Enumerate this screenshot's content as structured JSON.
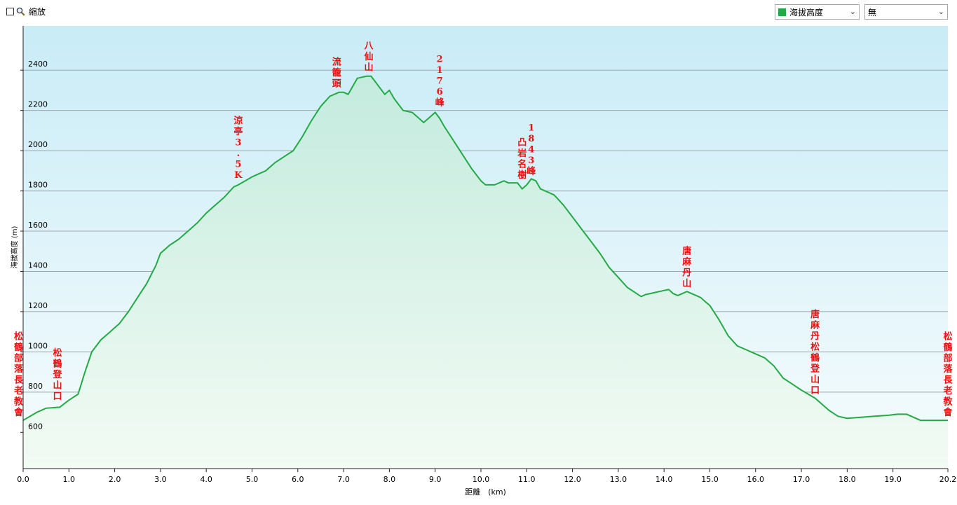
{
  "toolbar": {
    "zoom_label": "縮放",
    "series_select": "海拔高度",
    "series_color": "#22aa44",
    "second_select": "無"
  },
  "chart_data": {
    "type": "area",
    "xlabel": "距離　(km)",
    "ylabel": "海拔高度 (m)",
    "xlim": [
      0,
      20.2
    ],
    "ylim": [
      420,
      2620
    ],
    "grid": true,
    "line_color": "#22aa44",
    "x_ticks": [
      "0.0",
      "1.0",
      "2.0",
      "3.0",
      "4.0",
      "5.0",
      "6.0",
      "7.0",
      "8.0",
      "9.0",
      "10.0",
      "11.0",
      "12.0",
      "13.0",
      "14.0",
      "15.0",
      "16.0",
      "17.0",
      "18.0",
      "19.0",
      "20.2"
    ],
    "x_tick_values": [
      0,
      1,
      2,
      3,
      4,
      5,
      6,
      7,
      8,
      9,
      10,
      11,
      12,
      13,
      14,
      15,
      16,
      17,
      18,
      19,
      20.2
    ],
    "y_ticks": [
      600,
      800,
      1000,
      1200,
      1400,
      1600,
      1800,
      2000,
      2200,
      2400
    ],
    "series": [
      {
        "x": [
          0,
          0.3,
          0.5,
          0.8,
          1.0,
          1.2,
          1.35,
          1.5,
          1.7,
          1.9,
          2.0,
          2.1,
          2.3,
          2.5,
          2.7,
          2.9,
          3.0,
          3.2,
          3.4,
          3.6,
          3.8,
          4.0,
          4.2,
          4.4,
          4.6,
          4.7,
          4.85,
          5.0,
          5.1,
          5.3,
          5.5,
          5.7,
          5.9,
          6.1,
          6.3,
          6.5,
          6.7,
          6.9,
          7.0,
          7.1,
          7.3,
          7.5,
          7.6,
          7.7,
          7.9,
          8.0,
          8.1,
          8.3,
          8.5,
          8.6,
          8.75,
          8.85,
          9.0,
          9.1,
          9.2,
          9.4,
          9.6,
          9.8,
          10.0,
          10.1,
          10.3,
          10.5,
          10.6,
          10.8,
          10.9,
          11.0,
          11.1,
          11.2,
          11.3,
          11.5,
          11.6,
          11.8,
          12.0,
          12.2,
          12.4,
          12.6,
          12.8,
          13.0,
          13.2,
          13.4,
          13.5,
          13.6,
          13.7,
          13.8,
          13.9,
          14.1,
          14.2,
          14.3,
          14.4,
          14.5,
          14.6,
          14.7,
          14.8,
          14.9,
          15.0,
          15.2,
          15.4,
          15.6,
          15.8,
          16.0,
          16.2,
          16.4,
          16.6,
          16.8,
          17.0,
          17.3,
          17.6,
          17.8,
          18.0,
          18.3,
          18.6,
          18.9,
          19.1,
          19.3,
          19.4,
          19.5,
          19.6,
          19.8,
          20.0,
          20.2
        ],
        "y": [
          660,
          700,
          720,
          725,
          760,
          790,
          900,
          1000,
          1060,
          1100,
          1120,
          1140,
          1200,
          1270,
          1340,
          1430,
          1490,
          1530,
          1560,
          1600,
          1640,
          1690,
          1730,
          1770,
          1820,
          1830,
          1850,
          1870,
          1880,
          1900,
          1940,
          1970,
          2000,
          2070,
          2150,
          2220,
          2270,
          2290,
          2290,
          2280,
          2360,
          2370,
          2370,
          2340,
          2280,
          2300,
          2260,
          2200,
          2190,
          2170,
          2140,
          2160,
          2190,
          2160,
          2120,
          2050,
          1980,
          1910,
          1850,
          1830,
          1830,
          1850,
          1840,
          1840,
          1810,
          1830,
          1860,
          1850,
          1810,
          1790,
          1780,
          1730,
          1670,
          1610,
          1550,
          1490,
          1420,
          1370,
          1320,
          1290,
          1275,
          1285,
          1290,
          1295,
          1300,
          1310,
          1290,
          1280,
          1290,
          1300,
          1290,
          1280,
          1270,
          1250,
          1230,
          1160,
          1080,
          1030,
          1010,
          990,
          970,
          930,
          870,
          840,
          810,
          770,
          710,
          680,
          670,
          675,
          680,
          685,
          690,
          690,
          680,
          670,
          660,
          660,
          660,
          660
        ]
      }
    ],
    "annotations": [
      {
        "text": "松鶴部落長老教會",
        "x": -0.1,
        "y": 660
      },
      {
        "text": "松鶴登山口",
        "x": 0.75,
        "y": 740
      },
      {
        "text": "涼亭3.5K",
        "x": 4.7,
        "y": 1840
      },
      {
        "text": "流籠頭",
        "x": 6.85,
        "y": 2295
      },
      {
        "text": "八仙山",
        "x": 7.55,
        "y": 2375
      },
      {
        "text": "2176峰",
        "x": 9.1,
        "y": 2200
      },
      {
        "text": "凸岩名樹",
        "x": 10.9,
        "y": 1840
      },
      {
        "text": "1843峰",
        "x": 11.1,
        "y": 1860
      },
      {
        "text": "唐麻丹山",
        "x": 14.5,
        "y": 1300
      },
      {
        "text": "唐麻丹松鶴登山口",
        "x": 17.3,
        "y": 770
      },
      {
        "text": "松鶴部落長老教會",
        "x": 20.2,
        "y": 660
      }
    ]
  }
}
